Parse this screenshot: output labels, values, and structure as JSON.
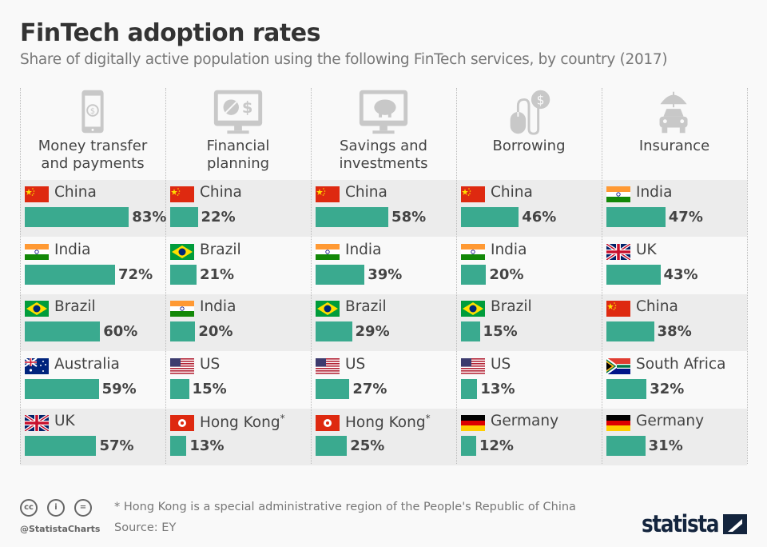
{
  "title": "FinTech adoption rates",
  "subtitle": "Share of digitally active population using the following FinTech services, by country (2017)",
  "footnote": "* Hong Kong is a special administrative region of the People's Republic of China",
  "source": "Source: EY",
  "handle": "@StatistaCharts",
  "brand": "statista",
  "license_icons": [
    "cc",
    "i",
    "="
  ],
  "colors": {
    "bar": "#3aaa8f",
    "band": "#ececec",
    "icon": "#c8c8c8"
  },
  "chart_data": {
    "type": "bar",
    "unit": "%",
    "panels": [
      {
        "title": "Money transfer and payments",
        "icon": "tablet-dollar-icon",
        "rows": [
          {
            "country": "China",
            "flag": "cn",
            "value": 83,
            "label": "83%"
          },
          {
            "country": "India",
            "flag": "in",
            "value": 72,
            "label": "72%"
          },
          {
            "country": "Brazil",
            "flag": "br",
            "value": 60,
            "label": "60%"
          },
          {
            "country": "Australia",
            "flag": "au",
            "value": 59,
            "label": "59%"
          },
          {
            "country": "UK",
            "flag": "uk",
            "value": 57,
            "label": "57%"
          }
        ]
      },
      {
        "title": "Financial planning",
        "icon": "monitor-piechart-icon",
        "rows": [
          {
            "country": "China",
            "flag": "cn",
            "value": 22,
            "label": "22%"
          },
          {
            "country": "Brazil",
            "flag": "br",
            "value": 21,
            "label": "21%"
          },
          {
            "country": "India",
            "flag": "in",
            "value": 20,
            "label": "20%"
          },
          {
            "country": "US",
            "flag": "us",
            "value": 15,
            "label": "15%"
          },
          {
            "country": "Hong Kong*",
            "flag": "hk",
            "value": 13,
            "label": "13%"
          }
        ]
      },
      {
        "title": "Savings and investments",
        "icon": "monitor-piggybank-icon",
        "rows": [
          {
            "country": "China",
            "flag": "cn",
            "value": 58,
            "label": "58%"
          },
          {
            "country": "India",
            "flag": "in",
            "value": 39,
            "label": "39%"
          },
          {
            "country": "Brazil",
            "flag": "br",
            "value": 29,
            "label": "29%"
          },
          {
            "country": "US",
            "flag": "us",
            "value": 27,
            "label": "27%"
          },
          {
            "country": "Hong Kong*",
            "flag": "hk",
            "value": 25,
            "label": "25%"
          }
        ]
      },
      {
        "title": "Borrowing",
        "icon": "mouse-dollar-icon",
        "rows": [
          {
            "country": "China",
            "flag": "cn",
            "value": 46,
            "label": "46%"
          },
          {
            "country": "India",
            "flag": "in",
            "value": 20,
            "label": "20%"
          },
          {
            "country": "Brazil",
            "flag": "br",
            "value": 15,
            "label": "15%"
          },
          {
            "country": "US",
            "flag": "us",
            "value": 13,
            "label": "13%"
          },
          {
            "country": "Germany",
            "flag": "de",
            "value": 12,
            "label": "12%"
          }
        ]
      },
      {
        "title": "Insurance",
        "icon": "umbrella-car-icon",
        "rows": [
          {
            "country": "India",
            "flag": "in",
            "value": 47,
            "label": "47%"
          },
          {
            "country": "UK",
            "flag": "uk",
            "value": 43,
            "label": "43%"
          },
          {
            "country": "China",
            "flag": "cn",
            "value": 38,
            "label": "38%"
          },
          {
            "country": "South Africa",
            "flag": "za",
            "value": 32,
            "label": "32%"
          },
          {
            "country": "Germany",
            "flag": "de",
            "value": 31,
            "label": "31%"
          }
        ]
      }
    ]
  }
}
